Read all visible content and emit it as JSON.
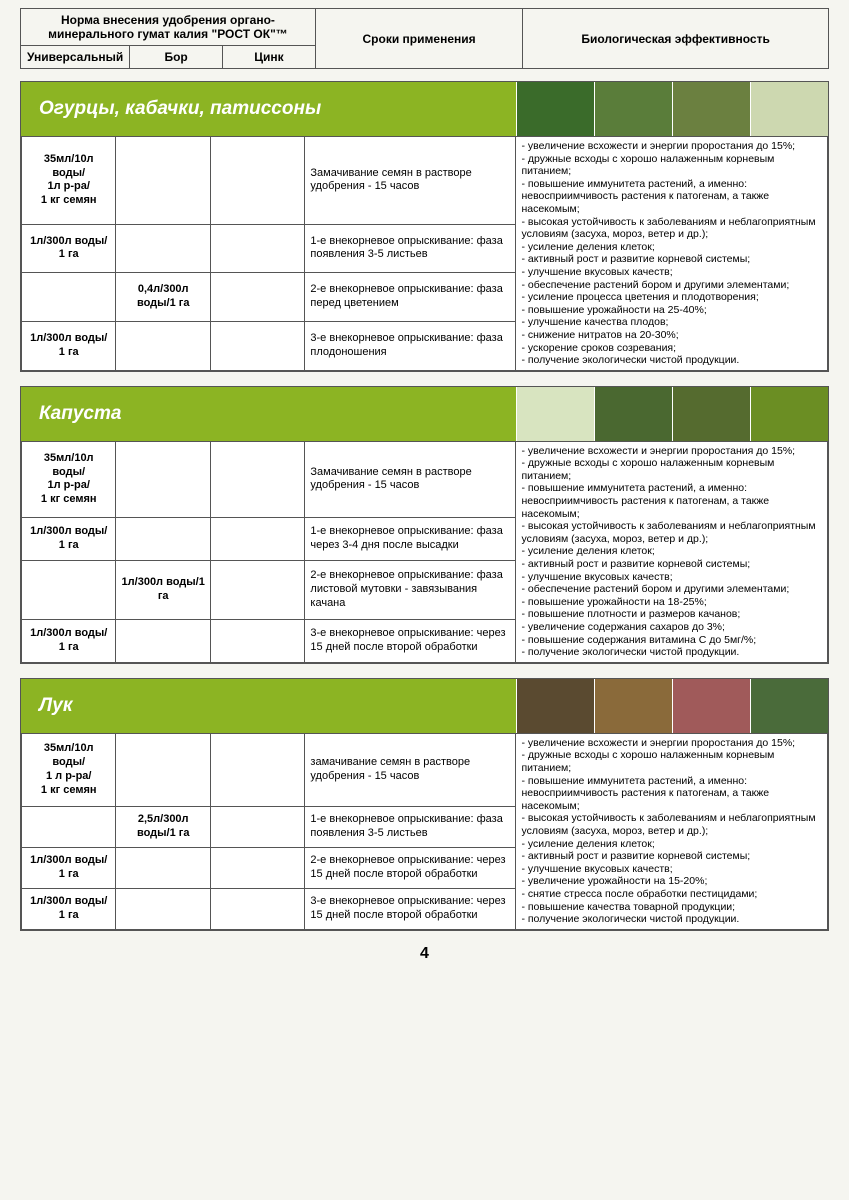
{
  "colors": {
    "header_bg": "#8cb423",
    "border": "#555555",
    "page_bg": "#f5f5f0",
    "text_white": "#ffffff"
  },
  "header": {
    "norm_title": "Норма внесения удобрения органо-минерального гумат калия \"РОСТ ОК\"™",
    "sub_universal": "Универсальный",
    "sub_bor": "Бор",
    "sub_zinc": "Цинк",
    "timing": "Сроки применения",
    "bio": "Биологическая эффективность"
  },
  "page_number": "4",
  "sections": [
    {
      "title": "Огурцы, кабачки, патиссоны",
      "thumbs": [
        "#3a6b2a",
        "#5a7d3a",
        "#6b8040",
        "#cdd8b0"
      ],
      "rows": [
        {
          "univ": "35мл/10л воды/\n1л р-ра/\n1 кг семян",
          "bor": "",
          "zinc": "",
          "timing": "Замачивание семян в растворе удобрения - 15 часов"
        },
        {
          "univ": "1л/300л воды/\n1 га",
          "bor": "",
          "zinc": "",
          "timing": "1-е внекорневое опрыскивание: фаза появления 3-5 листьев"
        },
        {
          "univ": "",
          "bor": "0,4л/300л воды/1 га",
          "zinc": "",
          "timing": "2-е внекорневое опрыскивание: фаза перед цветением"
        },
        {
          "univ": "1л/300л воды/\n1 га",
          "bor": "",
          "zinc": "",
          "timing": "3-е внекорневое опрыскивание: фаза плодоношения"
        }
      ],
      "bio": [
        "увеличение всхожести и энергии проростания до 15%;",
        "дружные всходы с хорошо налаженным корневым питанием;",
        "повышение иммунитета растений, а именно: невосприимчивость растения к патогенам, а также насекомым;",
        "высокая устойчивость к заболеваниям и неблагоприятным условиям (засуха, мороз, ветер и др.);",
        "усиление деления клеток;",
        "активный рост и развитие корневой системы;",
        "улучшение вкусовых качеств;",
        "обеспечение растений бором и другими элементами;",
        "усиление процесса цветения и плодотворения;",
        "повышение урожайности на  25-40%;",
        "улучшение качества плодов;",
        "снижение нитратов на 20-30%;",
        "ускорение сроков созревания;",
        "получение экологически чистой продукции."
      ]
    },
    {
      "title": "Капуста",
      "thumbs": [
        "#d8e4c0",
        "#4a6830",
        "#556b2f",
        "#6b8e23"
      ],
      "rows": [
        {
          "univ": "35мл/10л воды/\n1л р-ра/\n1 кг семян",
          "bor": "",
          "zinc": "",
          "timing": "Замачивание семян в растворе удобрения - 15 часов"
        },
        {
          "univ": "1л/300л воды/\n1 га",
          "bor": "",
          "zinc": "",
          "timing": "1-е внекорневое опрыскивание: фаза через 3-4 дня после высадки"
        },
        {
          "univ": "",
          "bor": "1л/300л воды/1 га",
          "zinc": "",
          "timing": "2-е внекорневое опрыскивание: фаза листовой мутовки - завязывания качана"
        },
        {
          "univ": "1л/300л воды/\n1 га",
          "bor": "",
          "zinc": "",
          "timing": "3-е внекорневое опрыскивание: через 15 дней после второй обработки"
        }
      ],
      "bio": [
        "увеличение всхожести и энергии проростания до 15%;",
        "дружные всходы с хорошо налаженным корневым питанием;",
        "повышение иммунитета растений, а именно: невосприимчивость растения к патогенам, а также насекомым;",
        "высокая устойчивость к заболеваниям и неблагоприятным условиям (засуха, мороз, ветер и др.);",
        "усиление деления клеток;",
        "активный рост и развитие корневой системы;",
        "улучшение вкусовых качеств;",
        "обеспечение растений бором и другими элементами;",
        "повышение урожайности на 18-25%;",
        "повышение плотности и размеров качанов;",
        "увеличение содержания сахаров до 3%;",
        "повышение содержания витамина С до 5мг/%;",
        "получение экологически чистой продукции."
      ]
    },
    {
      "title": "Лук",
      "thumbs": [
        "#5a4a30",
        "#8a6a3a",
        "#a05a5a",
        "#4a6b3a"
      ],
      "rows": [
        {
          "univ": "35мл/10л воды/\n1 л р-ра/\n1 кг семян",
          "bor": "",
          "zinc": "",
          "timing": "замачивание семян в растворе удобрения - 15 часов"
        },
        {
          "univ": "",
          "bor": "2,5л/300л воды/1 га",
          "zinc": "",
          "timing": "1-е внекорневое опрыскивание: фаза появления 3-5 листьев"
        },
        {
          "univ": "1л/300л воды/\n1 га",
          "bor": "",
          "zinc": "",
          "timing": "2-е внекорневое опрыскивание: через 15 дней после второй обработки"
        },
        {
          "univ": "1л/300л воды/\n1 га",
          "bor": "",
          "zinc": "",
          "timing": "3-е внекорневое опрыскивание: через 15 дней после второй обработки"
        }
      ],
      "bio": [
        "увеличение всхожести и энергии проростания до 15%;",
        "дружные всходы с хорошо налаженным корневым питанием;",
        "повышение иммунитета растений, а именно: невосприимчивость растения к патогенам, а также насекомым;",
        "высокая устойчивость к заболеваниям и неблагоприятным условиям (засуха, мороз, ветер и др.);",
        "усиление деления клеток;",
        "активный рост и развитие корневой системы;",
        "улучшение вкусовых качеств;",
        "увеличение урожайности на 15-20%;",
        "снятие стресса после обработки пестицидами;",
        "повышение качества товарной продукции;",
        "получение экологически чистой продукции."
      ]
    }
  ]
}
